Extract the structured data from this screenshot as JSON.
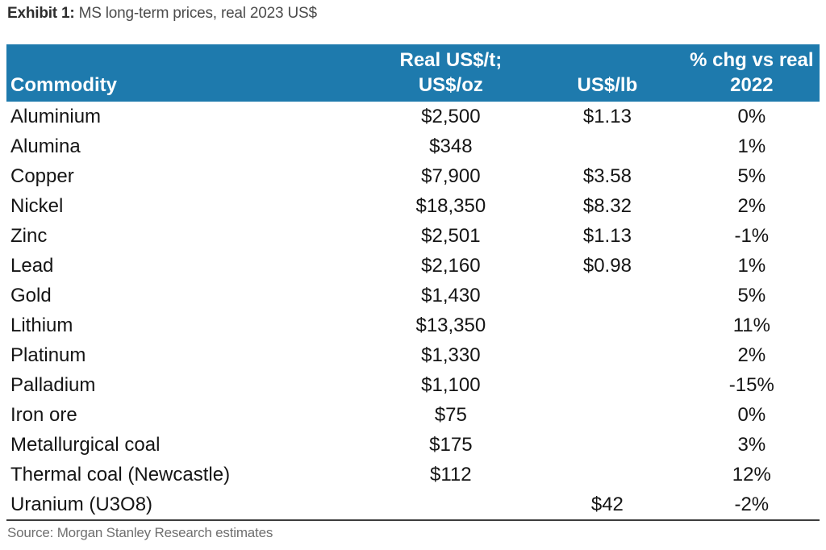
{
  "title": {
    "label": "Exhibit 1:",
    "text": " MS long-term prices, real 2023 US$"
  },
  "colors": {
    "header_bg": "#1e7aad",
    "header_text": "#ffffff",
    "body_text": "#151515",
    "bottom_rule": "#3d3d3d",
    "source_text": "#6f6f6f"
  },
  "table": {
    "header": {
      "col1": "Commodity",
      "col2_line1": "Real US$/t;",
      "col2_line2": "US$/oz",
      "col3": "US$/lb",
      "col4_line1": "% chg vs real",
      "col4_line2": "2022"
    },
    "rows": [
      {
        "name": "Aluminium",
        "us_t_oz": "$2,500",
        "us_lb": "$1.13",
        "chg": "0%"
      },
      {
        "name": "Alumina",
        "us_t_oz": "$348",
        "us_lb": "",
        "chg": "1%"
      },
      {
        "name": "Copper",
        "us_t_oz": "$7,900",
        "us_lb": "$3.58",
        "chg": "5%"
      },
      {
        "name": "Nickel",
        "us_t_oz": "$18,350",
        "us_lb": "$8.32",
        "chg": "2%"
      },
      {
        "name": "Zinc",
        "us_t_oz": "$2,501",
        "us_lb": "$1.13",
        "chg": "-1%"
      },
      {
        "name": "Lead",
        "us_t_oz": "$2,160",
        "us_lb": "$0.98",
        "chg": "1%"
      },
      {
        "name": "Gold",
        "us_t_oz": "$1,430",
        "us_lb": "",
        "chg": "5%"
      },
      {
        "name": "Lithium",
        "us_t_oz": "$13,350",
        "us_lb": "",
        "chg": "11%"
      },
      {
        "name": "Platinum",
        "us_t_oz": "$1,330",
        "us_lb": "",
        "chg": "2%"
      },
      {
        "name": "Palladium",
        "us_t_oz": "$1,100",
        "us_lb": "",
        "chg": "-15%"
      },
      {
        "name": "Iron ore",
        "us_t_oz": "$75",
        "us_lb": "",
        "chg": "0%"
      },
      {
        "name": "Metallurgical coal",
        "us_t_oz": "$175",
        "us_lb": "",
        "chg": "3%"
      },
      {
        "name": "Thermal coal (Newcastle)",
        "us_t_oz": "$112",
        "us_lb": "",
        "chg": "12%"
      },
      {
        "name": "Uranium (U3O8)",
        "us_t_oz": "",
        "us_lb": "$42",
        "chg": "-2%"
      }
    ]
  },
  "source": "Source: Morgan Stanley Research estimates"
}
